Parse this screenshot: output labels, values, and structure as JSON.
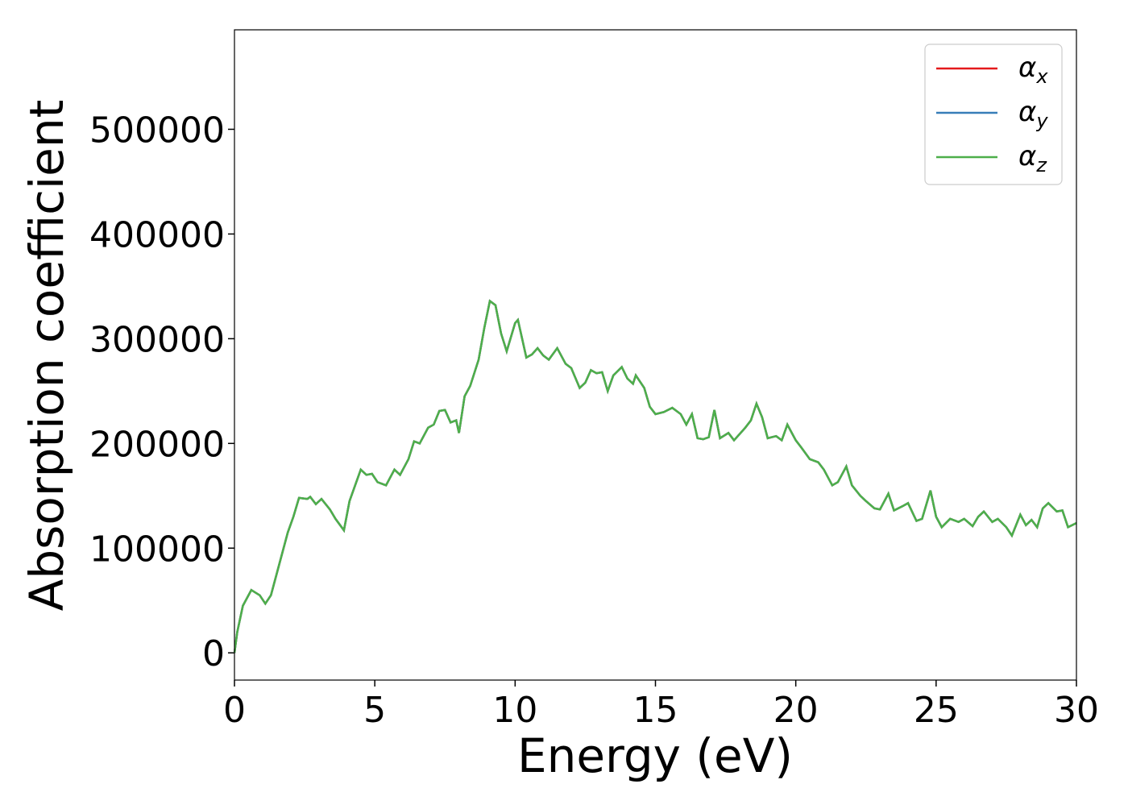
{
  "chart_data": {
    "type": "line",
    "xlabel": "Energy (eV)",
    "ylabel": "Absorption coefficient",
    "x": [
      0,
      0.1,
      0.3,
      0.6,
      0.9,
      1.1,
      1.3,
      1.6,
      1.9,
      2.1,
      2.3,
      2.6,
      2.7,
      2.9,
      3.1,
      3.4,
      3.6,
      3.9,
      4.1,
      4.3,
      4.5,
      4.7,
      4.9,
      5.1,
      5.4,
      5.7,
      5.9,
      6.2,
      6.4,
      6.6,
      6.9,
      7.1,
      7.3,
      7.5,
      7.7,
      7.9,
      8.0,
      8.2,
      8.4,
      8.7,
      8.9,
      9.1,
      9.3,
      9.5,
      9.7,
      10.0,
      10.1,
      10.4,
      10.6,
      10.8,
      11.0,
      11.2,
      11.5,
      11.8,
      12.0,
      12.3,
      12.5,
      12.7,
      12.9,
      13.1,
      13.3,
      13.5,
      13.8,
      14.0,
      14.2,
      14.3,
      14.6,
      14.8,
      15.0,
      15.3,
      15.6,
      15.9,
      16.1,
      16.3,
      16.5,
      16.7,
      16.9,
      17.1,
      17.3,
      17.6,
      17.8,
      18.2,
      18.4,
      18.6,
      18.8,
      19.0,
      19.3,
      19.5,
      19.7,
      20.0,
      20.2,
      20.5,
      20.8,
      21.0,
      21.3,
      21.5,
      21.8,
      22.0,
      22.3,
      22.5,
      22.8,
      23.0,
      23.3,
      23.5,
      23.8,
      24.0,
      24.3,
      24.5,
      24.8,
      25.0,
      25.2,
      25.5,
      25.8,
      26.0,
      26.3,
      26.5,
      26.7,
      27.0,
      27.2,
      27.5,
      27.7,
      28.0,
      28.2,
      28.4,
      28.6,
      28.8,
      29.0,
      29.3,
      29.5,
      29.7,
      30.0
    ],
    "series": [
      {
        "name": "αx",
        "color": "#e41a1c",
        "values": [
          0,
          20000,
          45000,
          60000,
          55000,
          47000,
          55000,
          85000,
          115000,
          130000,
          148000,
          147000,
          149000,
          142000,
          147000,
          137000,
          128000,
          117000,
          145000,
          160000,
          175000,
          170000,
          171000,
          163000,
          160000,
          175000,
          170000,
          185000,
          202000,
          200000,
          215000,
          218000,
          231000,
          232000,
          220000,
          222000,
          210000,
          245000,
          255000,
          280000,
          310000,
          336000,
          332000,
          305000,
          288000,
          315000,
          318000,
          282000,
          285000,
          291000,
          284000,
          280000,
          291000,
          276000,
          272000,
          253000,
          258000,
          270000,
          267000,
          268000,
          250000,
          265000,
          273000,
          262000,
          257000,
          265000,
          253000,
          235000,
          228000,
          230000,
          234000,
          228000,
          218000,
          228000,
          205000,
          204000,
          206000,
          232000,
          205000,
          210000,
          203000,
          215000,
          222000,
          238000,
          225000,
          205000,
          207000,
          203000,
          218000,
          203000,
          196000,
          185000,
          182000,
          175000,
          160000,
          163000,
          178000,
          160000,
          150000,
          145000,
          138000,
          137000,
          152000,
          136000,
          140000,
          143000,
          126000,
          128000,
          155000,
          130000,
          120000,
          128000,
          125000,
          128000,
          121000,
          130000,
          135000,
          125000,
          128000,
          120000,
          112000,
          132000,
          122000,
          127000,
          120000,
          138000,
          143000,
          135000,
          136000,
          120000,
          124000
        ]
      },
      {
        "name": "αy",
        "color": "#377eb8",
        "values": [
          0,
          20000,
          45000,
          60000,
          55000,
          47000,
          55000,
          85000,
          115000,
          130000,
          148000,
          147000,
          149000,
          142000,
          147000,
          137000,
          128000,
          117000,
          145000,
          160000,
          175000,
          170000,
          171000,
          163000,
          160000,
          175000,
          170000,
          185000,
          202000,
          200000,
          215000,
          218000,
          231000,
          232000,
          220000,
          222000,
          210000,
          245000,
          255000,
          280000,
          310000,
          336000,
          332000,
          305000,
          288000,
          315000,
          318000,
          282000,
          285000,
          291000,
          284000,
          280000,
          291000,
          276000,
          272000,
          253000,
          258000,
          270000,
          267000,
          268000,
          250000,
          265000,
          273000,
          262000,
          257000,
          265000,
          253000,
          235000,
          228000,
          230000,
          234000,
          228000,
          218000,
          228000,
          205000,
          204000,
          206000,
          232000,
          205000,
          210000,
          203000,
          215000,
          222000,
          238000,
          225000,
          205000,
          207000,
          203000,
          218000,
          203000,
          196000,
          185000,
          182000,
          175000,
          160000,
          163000,
          178000,
          160000,
          150000,
          145000,
          138000,
          137000,
          152000,
          136000,
          140000,
          143000,
          126000,
          128000,
          155000,
          130000,
          120000,
          128000,
          125000,
          128000,
          121000,
          130000,
          135000,
          125000,
          128000,
          120000,
          112000,
          132000,
          122000,
          127000,
          120000,
          138000,
          143000,
          135000,
          136000,
          120000,
          124000
        ]
      },
      {
        "name": "αz",
        "color": "#4daf4a",
        "values": [
          0,
          20000,
          45000,
          60000,
          55000,
          47000,
          55000,
          85000,
          115000,
          130000,
          148000,
          147000,
          149000,
          142000,
          147000,
          137000,
          128000,
          117000,
          145000,
          160000,
          175000,
          170000,
          171000,
          163000,
          160000,
          175000,
          170000,
          185000,
          202000,
          200000,
          215000,
          218000,
          231000,
          232000,
          220000,
          222000,
          210000,
          245000,
          255000,
          280000,
          310000,
          336000,
          332000,
          305000,
          288000,
          315000,
          318000,
          282000,
          285000,
          291000,
          284000,
          280000,
          291000,
          276000,
          272000,
          253000,
          258000,
          270000,
          267000,
          268000,
          250000,
          265000,
          273000,
          262000,
          257000,
          265000,
          253000,
          235000,
          228000,
          230000,
          234000,
          228000,
          218000,
          228000,
          205000,
          204000,
          206000,
          232000,
          205000,
          210000,
          203000,
          215000,
          222000,
          238000,
          225000,
          205000,
          207000,
          203000,
          218000,
          203000,
          196000,
          185000,
          182000,
          175000,
          160000,
          163000,
          178000,
          160000,
          150000,
          145000,
          138000,
          137000,
          152000,
          136000,
          140000,
          143000,
          126000,
          128000,
          155000,
          130000,
          120000,
          128000,
          125000,
          128000,
          121000,
          130000,
          135000,
          125000,
          128000,
          120000,
          112000,
          132000,
          122000,
          127000,
          120000,
          138000,
          143000,
          135000,
          136000,
          120000,
          124000
        ]
      }
    ],
    "xlim": [
      0,
      30
    ],
    "xticks": [
      0,
      5,
      10,
      15,
      20,
      25,
      30
    ],
    "ylim": [
      -26000,
      595000
    ],
    "yticks": [
      0,
      100000,
      200000,
      300000,
      400000,
      500000
    ],
    "legend": "upper right"
  }
}
